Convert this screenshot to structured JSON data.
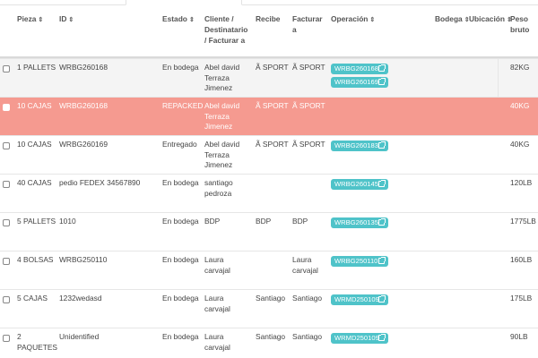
{
  "headers": {
    "pieza": "Pieza",
    "id": "ID",
    "estado": "Estado",
    "cliente_1": "Cliente /",
    "cliente_2": "Destinatario",
    "cliente_3": "/ Facturar a",
    "recibe": "Recibe",
    "facturar_1": "Facturar",
    "facturar_2": "a",
    "operacion": "Operación",
    "bodega": "Bodega",
    "ubicacion": "Ubicación",
    "peso_1": "Peso",
    "peso_2": "bruto",
    "sort_glyph": "⇕"
  },
  "colors": {
    "tag": "#4fc3c9",
    "repacked_row": "#f59a90",
    "alt_row": "#f4f4f4"
  },
  "rows": [
    {
      "pieza": [
        "1 PALLETS"
      ],
      "id": "WRBG260168",
      "estado": "En bodega",
      "cliente": [
        "Abel david",
        "Terraza",
        "Jimenez"
      ],
      "recibe": "Ã SPORT",
      "facturar": [
        "Ã SPORT"
      ],
      "ops": [
        "WRBG260168",
        "WRBG260169"
      ],
      "peso": "82KG",
      "style": "gray"
    },
    {
      "pieza": [
        "10 CAJAS"
      ],
      "id": "WRBG260168",
      "estado": "REPACKED",
      "cliente": [
        "Abel david",
        "Terraza",
        "Jimenez"
      ],
      "recibe": "Ã SPORT",
      "facturar": [
        "Ã SPORT"
      ],
      "ops": [],
      "peso": "40KG",
      "style": "repacked"
    },
    {
      "pieza": [
        "10 CAJAS"
      ],
      "id": "WRBG260169",
      "estado": "Entregado",
      "cliente": [
        "Abel david",
        "Terraza",
        "Jimenez"
      ],
      "recibe": "Ã SPORT",
      "facturar": [
        "Ã SPORT"
      ],
      "ops": [
        "WRBG260183"
      ],
      "peso": "40KG",
      "style": "white"
    },
    {
      "pieza": [
        "40 CAJAS"
      ],
      "id": "pedio FEDEX 34567890",
      "estado": "En bodega",
      "cliente": [
        "santiago",
        "pedroza"
      ],
      "recibe": "",
      "facturar": [],
      "ops": [
        "WRBG260145"
      ],
      "peso": "120LB",
      "style": "white"
    },
    {
      "pieza": [
        "5 PALLETS"
      ],
      "id": "1010",
      "estado": "En bodega",
      "cliente": [
        "BDP"
      ],
      "recibe": "BDP",
      "facturar": [
        "BDP"
      ],
      "ops": [
        "WRBG260135"
      ],
      "peso": "1775LB",
      "style": "white"
    },
    {
      "pieza": [
        "4 BOLSAS"
      ],
      "id": "WRBG250110",
      "estado": "En bodega",
      "cliente": [
        "Laura",
        "carvajal"
      ],
      "recibe": "",
      "facturar": [
        "Laura",
        "carvajal"
      ],
      "ops": [
        "WRBG250110"
      ],
      "peso": "160LB",
      "style": "white"
    },
    {
      "pieza": [
        "5 CAJAS"
      ],
      "id": "1232wedasd",
      "estado": "En bodega",
      "cliente": [
        "Laura",
        "carvajal"
      ],
      "recibe": "Santiago",
      "facturar": [
        "Santiago"
      ],
      "ops": [
        "WRMD250109"
      ],
      "peso": "175LB",
      "style": "white"
    },
    {
      "pieza": [
        "2",
        "PAQUETES"
      ],
      "id": "Unidentified",
      "estado": "En bodega",
      "cliente": [
        "Laura",
        "carvajal"
      ],
      "recibe": "Santiago",
      "facturar": [
        "Santiago"
      ],
      "ops": [
        "WRMD250109"
      ],
      "peso": "90LB",
      "style": "white"
    }
  ]
}
